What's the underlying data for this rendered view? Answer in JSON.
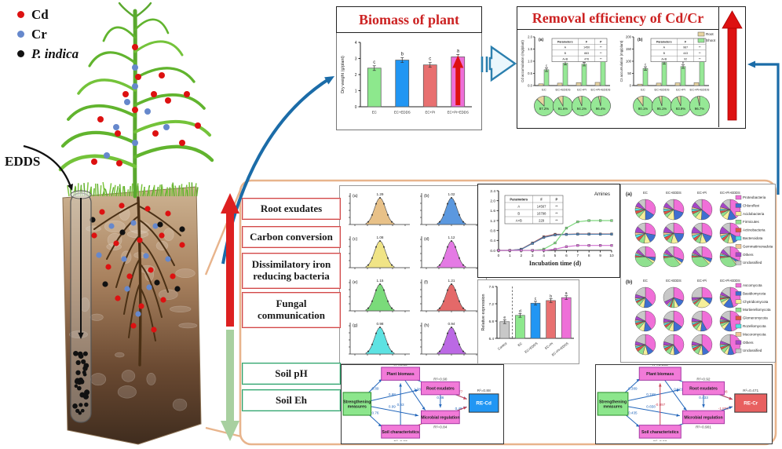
{
  "markers": {
    "items": [
      {
        "label": "Cd",
        "color": "#dd1111",
        "italic": false
      },
      {
        "label": "Cr",
        "color": "#6688cc",
        "italic": false
      },
      {
        "label": "P. indica",
        "color": "#111111",
        "italic": true
      }
    ]
  },
  "edds": {
    "label": "EDDS"
  },
  "biomass": {
    "title": "Biomass of plant",
    "chart_data": {
      "type": "bar",
      "ylabel": "Dry weight (g/plant)",
      "ylim": [
        0,
        4
      ],
      "yticks": [
        0,
        1,
        2,
        3,
        4
      ],
      "categories": [
        "EC",
        "EC+EDDS",
        "EC+Pi",
        "EC+Pi+EDDS"
      ],
      "values": [
        2.4,
        2.9,
        2.6,
        3.1
      ],
      "letters": [
        "c",
        "b",
        "c",
        "a"
      ],
      "colors": [
        "#8de88d",
        "#2196f3",
        "#e87070",
        "#ee6fd8"
      ]
    }
  },
  "removal": {
    "title": "Removal efficiency of Cd/Cr",
    "series_legend": [
      {
        "label": "Root",
        "color": "#e8d5a0"
      },
      {
        "label": "Shoot",
        "color": "#96e896"
      }
    ],
    "chart_data": [
      {
        "type": "bar",
        "panel": "(a)",
        "ylabel": "Cd accumulation (mg/plant)",
        "ylim": [
          0,
          2.0
        ],
        "yticks": [
          "0.0",
          "0.5",
          "1.0",
          "1.5",
          "2.0"
        ],
        "categories": [
          "EC",
          "EC+EDDS",
          "EC+Pi",
          "EC+Pi+EDDS"
        ],
        "root": [
          0.07,
          0.1,
          0.12,
          0.13
        ],
        "shoot": [
          0.65,
          0.92,
          0.88,
          1.15
        ],
        "letters": [
          "c",
          "b",
          "b",
          "a"
        ],
        "pies_pct": [
          "87.2%",
          "91.6%",
          "94.1%",
          "96.4%"
        ],
        "inset": {
          "header": [
            "Parameters",
            "F",
            "P"
          ],
          "rows": [
            [
              "A",
              "1450",
              "**"
            ],
            [
              "B",
              "883",
              "**"
            ],
            [
              "A×B",
              "476",
              "**"
            ]
          ]
        }
      },
      {
        "type": "bar",
        "panel": "(b)",
        "ylabel": "Cr accumulation (mg/plant)",
        "ylim": [
          0,
          200
        ],
        "yticks": [
          "0",
          "50",
          "100",
          "150",
          "200"
        ],
        "categories": [
          "EC",
          "EC+EDDS",
          "EC+Pi",
          "EC+Pi+EDDS"
        ],
        "root": [
          6,
          10,
          11,
          12
        ],
        "shoot": [
          70,
          95,
          78,
          105
        ],
        "letters": [
          "c",
          "b",
          "b",
          "a"
        ],
        "pies_pct": [
          "90.1%",
          "95.1%",
          "93.9%",
          "96.7%"
        ],
        "inset": {
          "header": [
            "Parameters",
            "F",
            "P"
          ],
          "rows": [
            [
              "A",
              "987",
              "**"
            ],
            [
              "B",
              "443",
              "**"
            ],
            [
              "A×B",
              "92",
              "**"
            ]
          ]
        }
      }
    ]
  },
  "process": {
    "up_labels": [
      "Root exudates",
      "Carbon conversion",
      "Dissimilatory iron reducing bacteria",
      "Fungal communication"
    ],
    "down_labels": [
      "Soil pH",
      "Soil Eh"
    ],
    "up_color": "#d04848",
    "down_color": "#2aa06a"
  },
  "dist_grid": {
    "chart_data": {
      "type": "area",
      "plots": [
        {
          "id": "(a)",
          "peak": "1.29",
          "color": "#e6bc7e"
        },
        {
          "id": "(b)",
          "peak": "1.02",
          "color": "#4d8fdc"
        },
        {
          "id": "(c)",
          "peak": "1.08",
          "color": "#efe27c"
        },
        {
          "id": "(d)",
          "peak": "1.12",
          "color": "#e26fe2"
        },
        {
          "id": "(e)",
          "peak": "1.15",
          "color": "#6fd86f"
        },
        {
          "id": "(f)",
          "peak": "1.21",
          "color": "#e25c5c"
        },
        {
          "id": "(g)",
          "peak": "0.98",
          "color": "#4fe0e0"
        },
        {
          "id": "(h)",
          "peak": "0.94",
          "color": "#b55ce2"
        }
      ]
    }
  },
  "amines": {
    "annotation": "Amines",
    "chart_data": {
      "type": "line",
      "xlabel": "Incubation time (d)",
      "x": [
        0,
        1,
        2,
        3,
        4,
        5,
        6,
        7,
        8,
        9,
        10
      ],
      "ylim": [
        0,
        2.4
      ],
      "yticks": [
        "0.0",
        "0.4",
        "0.8",
        "1.2",
        "1.6",
        "2.0",
        "2.4"
      ],
      "series": [
        {
          "name": "EC",
          "color": "#a05050",
          "values": [
            0,
            0,
            0.05,
            0.3,
            0.55,
            0.65,
            0.65,
            0.66,
            0.66,
            0.66,
            0.66
          ]
        },
        {
          "name": "EC+EDDS",
          "color": "#5080b0",
          "values": [
            0,
            0,
            0.04,
            0.28,
            0.52,
            0.62,
            0.64,
            0.65,
            0.65,
            0.65,
            0.65
          ]
        },
        {
          "name": "EC+Pi",
          "color": "#7ed87e",
          "values": [
            0,
            0,
            0,
            0,
            0.05,
            0.3,
            0.9,
            1.15,
            1.2,
            1.2,
            1.2
          ]
        },
        {
          "name": "EC+Pi+EDDS",
          "color": "#d070d0",
          "values": [
            0,
            0,
            0,
            0,
            0,
            0.05,
            0.15,
            0.2,
            0.2,
            0.2,
            0.2
          ]
        }
      ],
      "inset": {
        "header": [
          "Parameters",
          "F",
          "P"
        ],
        "rows": [
          [
            "A",
            "14567",
            "**"
          ],
          [
            "B",
            "16798",
            "**"
          ],
          [
            "A×B",
            "229",
            "**"
          ]
        ]
      }
    }
  },
  "expression": {
    "chart_data": {
      "type": "bar",
      "ylabel": "Relative expression",
      "ylim": [
        6.4,
        7.8
      ],
      "yticks": [
        "6.4",
        "6.8",
        "7.2",
        "7.6"
      ],
      "categories": [
        "Control",
        "EC",
        "EC+EDDS",
        "EC+Pi",
        "EC+Pi+EDDS"
      ],
      "values": [
        6.85,
        7.02,
        7.35,
        7.42,
        7.5
      ],
      "letters": [
        "e",
        "d",
        "c",
        "b",
        "a"
      ],
      "colors": [
        "#c8c8c8",
        "#8de88d",
        "#2196f3",
        "#e87070",
        "#ee6fd8"
      ]
    }
  },
  "community": {
    "palette": [
      "#f06fd8",
      "#3f6fd0",
      "#f5ef9a",
      "#8fe08f",
      "#e05545",
      "#4fe3e3",
      "#f0c896",
      "#a545c8",
      "#c8c8c8"
    ],
    "chart_data": [
      {
        "id": "(a)",
        "columns": [
          "EC",
          "EC+EDDS",
          "EC+Pi",
          "EC+Pi+EDDS"
        ],
        "legend": [
          "Proteobacteria",
          "Chloroflexi",
          "Acidobacteria",
          "Firmicutes",
          "Actinobacteria",
          "Bacteroidota",
          "Gemmatimonadota",
          "Others",
          "Unclassified"
        ],
        "pies": [
          [
            34,
            16,
            11,
            7,
            5,
            4,
            3,
            8,
            12
          ],
          [
            30,
            19,
            12,
            6,
            5,
            4,
            3,
            8,
            13
          ],
          [
            36,
            15,
            10,
            7,
            4,
            4,
            3,
            9,
            12
          ],
          [
            40,
            14,
            9,
            6,
            4,
            3,
            3,
            8,
            13
          ],
          [
            28,
            14,
            10,
            9,
            6,
            5,
            4,
            10,
            14
          ],
          [
            26,
            17,
            11,
            8,
            6,
            4,
            4,
            10,
            14
          ],
          [
            30,
            13,
            10,
            8,
            5,
            5,
            4,
            11,
            14
          ],
          [
            33,
            12,
            9,
            7,
            5,
            4,
            4,
            12,
            14
          ],
          [
            26,
            6,
            4,
            38,
            3,
            3,
            2,
            6,
            12
          ],
          [
            30,
            5,
            4,
            34,
            3,
            3,
            2,
            7,
            12
          ],
          [
            28,
            6,
            4,
            36,
            3,
            2,
            2,
            7,
            12
          ],
          [
            32,
            5,
            3,
            33,
            3,
            3,
            2,
            7,
            12
          ]
        ]
      },
      {
        "id": "(b)",
        "columns": [
          "EC",
          "EC+EDDS",
          "EC+Pi",
          "EC+Pi+EDDS"
        ],
        "legend": [
          "Ascomycota",
          "Basidiomycota",
          "Chytridiomycota",
          "Mortierellomycota",
          "Glomeromycota",
          "Rozellomycota",
          "Mucoromycota",
          "Others",
          "Unclassified"
        ],
        "pies": [
          [
            38,
            14,
            8,
            6,
            3,
            3,
            2,
            6,
            20
          ],
          [
            30,
            12,
            7,
            5,
            3,
            3,
            2,
            6,
            32
          ],
          [
            26,
            10,
            22,
            5,
            3,
            2,
            2,
            5,
            25
          ],
          [
            45,
            16,
            6,
            5,
            3,
            2,
            2,
            5,
            16
          ],
          [
            40,
            12,
            9,
            7,
            4,
            3,
            2,
            6,
            17
          ],
          [
            35,
            15,
            8,
            6,
            4,
            3,
            2,
            6,
            21
          ],
          [
            42,
            10,
            7,
            6,
            4,
            3,
            2,
            6,
            20
          ],
          [
            48,
            12,
            6,
            5,
            3,
            2,
            2,
            5,
            17
          ],
          [
            36,
            10,
            8,
            9,
            6,
            3,
            2,
            6,
            20
          ],
          [
            40,
            9,
            7,
            8,
            5,
            3,
            2,
            6,
            20
          ],
          [
            38,
            11,
            7,
            8,
            5,
            3,
            2,
            6,
            20
          ],
          [
            44,
            10,
            6,
            7,
            4,
            3,
            2,
            5,
            19
          ]
        ]
      }
    ]
  },
  "sem": {
    "node_labels": {
      "sm": "Strengthening measures",
      "pb": "Plant biomass",
      "re": "Root exudates",
      "mr": "Microbial regulation",
      "sc": "Soil characteristics"
    },
    "diagrams": [
      {
        "target": "RE-Cd",
        "target_color": "#2196f3",
        "r2": {
          "pb": "R²=0.89",
          "re": "R²=0.90",
          "mr": "R²=0.84",
          "sc": "R²=0.87",
          "out": "R²=0.88"
        },
        "edges": [
          {
            "f": "sm",
            "t": "pb",
            "v": "0.89"
          },
          {
            "f": "sm",
            "t": "re",
            "v": "0.68"
          },
          {
            "f": "sm",
            "t": "mr",
            "v": "0.99"
          },
          {
            "f": "sm",
            "t": "sc",
            "v": "0.76"
          },
          {
            "f": "pb",
            "t": "out",
            "v": "1.04"
          },
          {
            "f": "re",
            "t": "out",
            "v": "-0.77",
            "neg": true
          },
          {
            "f": "mr",
            "t": "out",
            "v": "0.48"
          },
          {
            "f": "sc",
            "t": "out",
            "v": "-0.37",
            "neg": true
          },
          {
            "f": "re",
            "t": "mr",
            "v": "0.86"
          },
          {
            "f": "pb",
            "t": "mr",
            "v": "1.78"
          },
          {
            "f": "sc",
            "t": "pb",
            "v": "0.63"
          }
        ]
      },
      {
        "target": "RE-Cr",
        "target_color": "#e86060",
        "r2": {
          "pb": "R²=0.896",
          "re": "R²=0.92",
          "mr": "R²=0.901",
          "sc": "R²=0.93",
          "out": "R²=0.471"
        },
        "edges": [
          {
            "f": "sm",
            "t": "pb",
            "v": "0.389"
          },
          {
            "f": "sm",
            "t": "re",
            "v": "0.748"
          },
          {
            "f": "sm",
            "t": "mr",
            "v": "0.658"
          },
          {
            "f": "sm",
            "t": "sc",
            "v": "0.435"
          },
          {
            "f": "pb",
            "t": "out",
            "v": "0.35"
          },
          {
            "f": "re",
            "t": "out",
            "v": "-1.08",
            "neg": true
          },
          {
            "f": "mr",
            "t": "out",
            "v": "-1.899",
            "neg": true
          },
          {
            "f": "sc",
            "t": "out",
            "v": "4.899"
          },
          {
            "f": "re",
            "t": "mr",
            "v": "0.433"
          },
          {
            "f": "sc",
            "t": "pb",
            "v": "-0.097",
            "neg": true
          },
          {
            "f": "pb",
            "t": "mr",
            "v": "0.921"
          }
        ]
      }
    ]
  }
}
